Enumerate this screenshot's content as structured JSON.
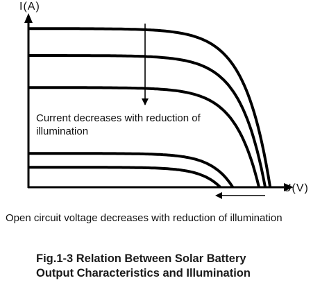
{
  "chart_data": {
    "type": "line",
    "title": "",
    "xlabel": "U(V)",
    "ylabel": "I(A)",
    "grid": false,
    "legend": "none",
    "curves": [
      {
        "isc": 0.915,
        "voc": 0.97
      },
      {
        "isc": 0.76,
        "voc": 0.95
      },
      {
        "isc": 0.575,
        "voc": 0.925
      },
      {
        "isc": 0.195,
        "voc": 0.82
      },
      {
        "isc": 0.115,
        "voc": 0.77
      }
    ],
    "annotations": {
      "current": "Current decreases with reduction of illumination",
      "voltage": "Open circuit voltage decreases with reduction of illumination"
    }
  },
  "figure": {
    "caption_line1": "Fig.1-3 Relation Between Solar Battery",
    "caption_line2": "Output Characteristics and Illumination"
  },
  "colors": {
    "curve": "#000000",
    "axis": "#000000"
  }
}
